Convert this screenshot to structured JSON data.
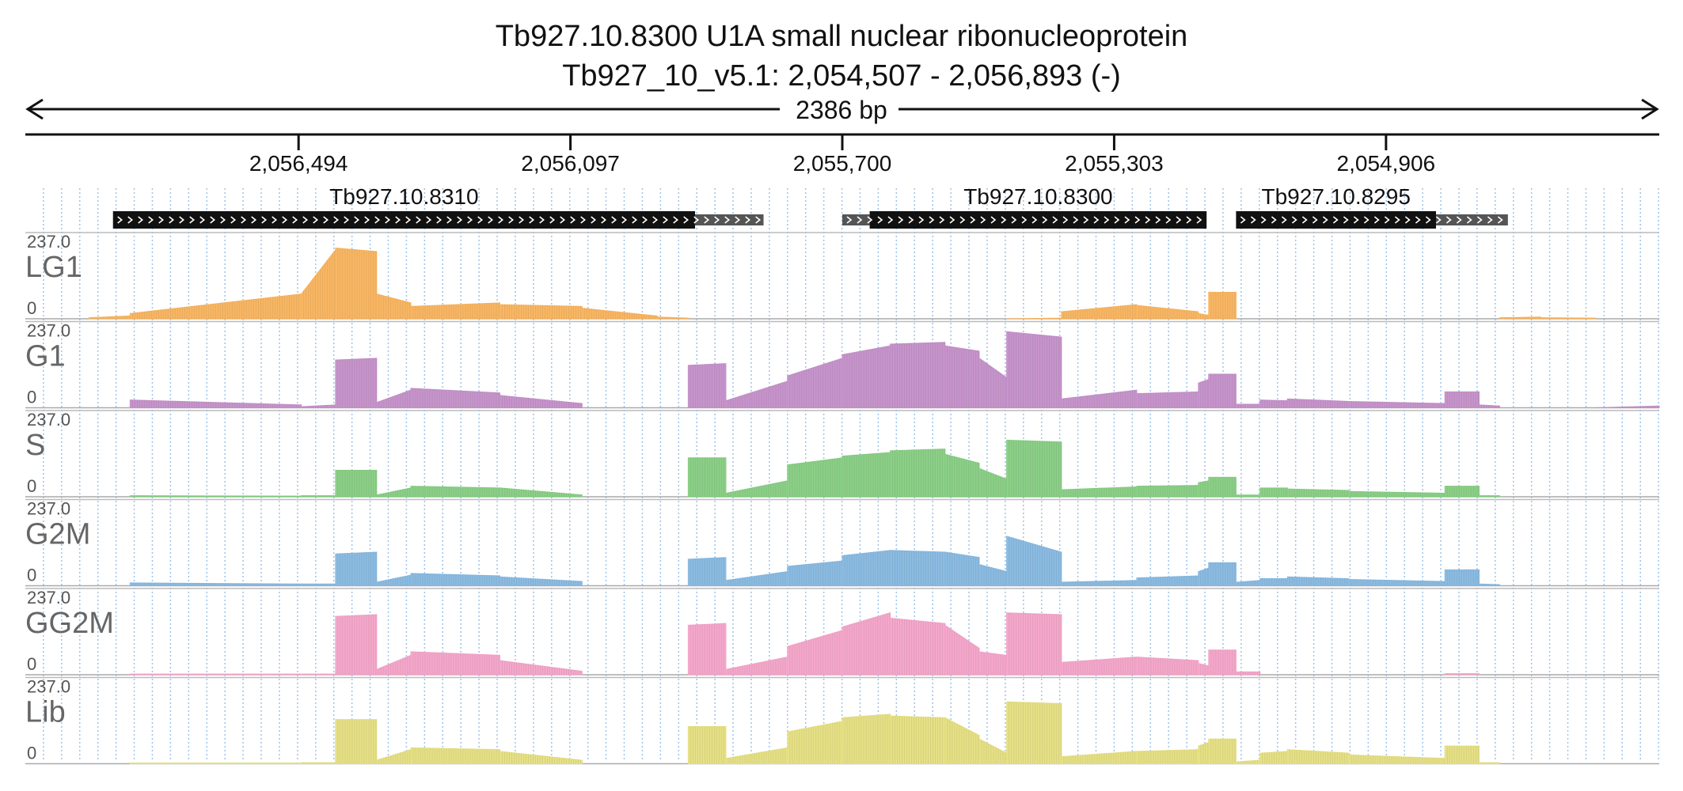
{
  "title": {
    "line1": "Tb927.10.8300  U1A small nuclear ribonucleoprotein",
    "line2": "Tb927_10_v5.1: 2,054,507 - 2,056,893 (-)"
  },
  "region": {
    "chrom": "Tb927_10_v5.1",
    "start": 2054507,
    "end": 2056893,
    "strand": "-",
    "span_label": "2386 bp"
  },
  "chart_data": {
    "type": "area",
    "x_axis": {
      "reversed": true,
      "ticks": [
        2056494,
        2056097,
        2055700,
        2055303,
        2054906
      ],
      "tick_labels": [
        "2,056,494",
        "2,056,097",
        "2,055,700",
        "2,055,303",
        "2,054,906"
      ],
      "grid": true
    },
    "genes": [
      {
        "name": "Tb927.10.8310",
        "cds": [
          2056765,
          2055915
        ],
        "utr": [
          2055915,
          2055815
        ]
      },
      {
        "name": "Tb927.10.8300",
        "cds": [
          2055660,
          2055168
        ],
        "utr": [
          2055700,
          2055660
        ]
      },
      {
        "name": "Tb927.10.8295",
        "cds": [
          2055125,
          2054833
        ],
        "utr": [
          2054833,
          2054728
        ]
      }
    ],
    "ylim": [
      0,
      237.0
    ],
    "y_max_label": "237.0",
    "y_min_label": "0",
    "segments": [
      [
        2056800,
        2056740
      ],
      [
        2056740,
        2056490
      ],
      [
        2056490,
        2056440
      ],
      [
        2056440,
        2056380
      ],
      [
        2056380,
        2056330
      ],
      [
        2056330,
        2056200
      ],
      [
        2056200,
        2056080
      ],
      [
        2056080,
        2055970
      ],
      [
        2055970,
        2055925
      ],
      [
        2055925,
        2055870
      ],
      [
        2055870,
        2055780
      ],
      [
        2055780,
        2055700
      ],
      [
        2055700,
        2055630
      ],
      [
        2055630,
        2055550
      ],
      [
        2055550,
        2055500
      ],
      [
        2055500,
        2055460
      ],
      [
        2055460,
        2055380
      ],
      [
        2055380,
        2055270
      ],
      [
        2055270,
        2055180
      ],
      [
        2055180,
        2055165
      ],
      [
        2055165,
        2055125
      ],
      [
        2055125,
        2055090
      ],
      [
        2055090,
        2055050
      ],
      [
        2055050,
        2054960
      ],
      [
        2054960,
        2054820
      ],
      [
        2054820,
        2054770
      ],
      [
        2054770,
        2054740
      ],
      [
        2054740,
        2054680
      ],
      [
        2054680,
        2054600
      ],
      [
        2054600,
        2054507
      ]
    ],
    "series": [
      {
        "name": "LG1",
        "color": "#f9b35c",
        "values": [
          [
            3,
            8
          ],
          [
            15,
            70
          ],
          [
            70,
            195
          ],
          [
            200,
            190
          ],
          [
            70,
            45
          ],
          [
            35,
            45
          ],
          [
            40,
            35
          ],
          [
            30,
            8
          ],
          [
            5,
            2
          ],
          [
            0,
            0
          ],
          [
            0,
            0
          ],
          [
            0,
            0
          ],
          [
            0,
            0
          ],
          [
            0,
            0
          ],
          [
            0,
            0
          ],
          [
            0,
            0
          ],
          [
            0,
            2
          ],
          [
            20,
            40
          ],
          [
            38,
            20
          ],
          [
            15,
            10
          ],
          [
            75,
            75
          ],
          [
            0,
            0
          ],
          [
            0,
            0
          ],
          [
            0,
            0
          ],
          [
            0,
            0
          ],
          [
            0,
            0
          ],
          [
            0,
            0
          ],
          [
            3,
            5
          ],
          [
            3,
            2
          ],
          [
            0,
            0
          ]
        ]
      },
      {
        "name": "G1",
        "color": "#c48fc9",
        "values": [
          [
            0,
            0
          ],
          [
            22,
            8
          ],
          [
            3,
            8
          ],
          [
            135,
            140
          ],
          [
            15,
            50
          ],
          [
            55,
            42
          ],
          [
            35,
            12
          ],
          [
            0,
            0
          ],
          [
            0,
            0
          ],
          [
            120,
            125
          ],
          [
            20,
            75
          ],
          [
            90,
            140
          ],
          [
            150,
            175
          ],
          [
            180,
            185
          ],
          [
            175,
            160
          ],
          [
            140,
            85
          ],
          [
            215,
            200
          ],
          [
            25,
            50
          ],
          [
            40,
            45
          ],
          [
            70,
            80
          ],
          [
            95,
            95
          ],
          [
            10,
            10
          ],
          [
            22,
            20
          ],
          [
            25,
            18
          ],
          [
            18,
            12
          ],
          [
            45,
            45
          ],
          [
            8,
            5
          ],
          [
            0,
            0
          ],
          [
            0,
            0
          ],
          [
            0,
            5
          ]
        ]
      },
      {
        "name": "S",
        "color": "#86cd82",
        "values": [
          [
            0,
            0
          ],
          [
            3,
            2
          ],
          [
            3,
            3
          ],
          [
            75,
            75
          ],
          [
            5,
            25
          ],
          [
            30,
            25
          ],
          [
            25,
            5
          ],
          [
            0,
            0
          ],
          [
            0,
            0
          ],
          [
            110,
            110
          ],
          [
            10,
            45
          ],
          [
            90,
            110
          ],
          [
            115,
            125
          ],
          [
            130,
            135
          ],
          [
            120,
            95
          ],
          [
            80,
            50
          ],
          [
            160,
            155
          ],
          [
            20,
            28
          ],
          [
            30,
            32
          ],
          [
            40,
            45
          ],
          [
            55,
            55
          ],
          [
            5,
            5
          ],
          [
            25,
            25
          ],
          [
            22,
            18
          ],
          [
            15,
            10
          ],
          [
            30,
            30
          ],
          [
            3,
            3
          ],
          [
            0,
            0
          ],
          [
            0,
            0
          ],
          [
            0,
            0
          ]
        ]
      },
      {
        "name": "G2M",
        "color": "#86b8e0",
        "values": [
          [
            0,
            0
          ],
          [
            8,
            5
          ],
          [
            5,
            5
          ],
          [
            90,
            95
          ],
          [
            10,
            30
          ],
          [
            35,
            28
          ],
          [
            25,
            12
          ],
          [
            0,
            0
          ],
          [
            0,
            0
          ],
          [
            75,
            80
          ],
          [
            15,
            40
          ],
          [
            55,
            70
          ],
          [
            85,
            100
          ],
          [
            100,
            95
          ],
          [
            95,
            80
          ],
          [
            60,
            40
          ],
          [
            140,
            95
          ],
          [
            10,
            15
          ],
          [
            22,
            28
          ],
          [
            40,
            50
          ],
          [
            65,
            65
          ],
          [
            10,
            15
          ],
          [
            20,
            20
          ],
          [
            25,
            20
          ],
          [
            18,
            12
          ],
          [
            45,
            45
          ],
          [
            5,
            3
          ],
          [
            0,
            0
          ],
          [
            0,
            0
          ],
          [
            0,
            0
          ]
        ]
      },
      {
        "name": "GG2M",
        "color": "#f4a3c8",
        "values": [
          [
            0,
            0
          ],
          [
            2,
            2
          ],
          [
            2,
            2
          ],
          [
            165,
            170
          ],
          [
            15,
            55
          ],
          [
            65,
            55
          ],
          [
            40,
            10
          ],
          [
            0,
            0
          ],
          [
            0,
            0
          ],
          [
            140,
            145
          ],
          [
            15,
            50
          ],
          [
            80,
            125
          ],
          [
            135,
            175
          ],
          [
            160,
            145
          ],
          [
            140,
            75
          ],
          [
            65,
            55
          ],
          [
            175,
            170
          ],
          [
            35,
            50
          ],
          [
            50,
            40
          ],
          [
            32,
            25
          ],
          [
            70,
            70
          ],
          [
            8,
            8
          ],
          [
            0,
            0
          ],
          [
            0,
            0
          ],
          [
            0,
            0
          ],
          [
            3,
            3
          ],
          [
            0,
            0
          ],
          [
            0,
            0
          ],
          [
            0,
            0
          ],
          [
            0,
            0
          ]
        ]
      },
      {
        "name": "Lib",
        "color": "#e5df7f",
        "values": [
          [
            0,
            0
          ],
          [
            2,
            2
          ],
          [
            3,
            3
          ],
          [
            125,
            125
          ],
          [
            10,
            40
          ],
          [
            45,
            40
          ],
          [
            35,
            10
          ],
          [
            0,
            0
          ],
          [
            0,
            0
          ],
          [
            105,
            105
          ],
          [
            15,
            45
          ],
          [
            90,
            120
          ],
          [
            130,
            140
          ],
          [
            135,
            130
          ],
          [
            130,
            80
          ],
          [
            70,
            30
          ],
          [
            175,
            170
          ],
          [
            20,
            35
          ],
          [
            35,
            40
          ],
          [
            50,
            60
          ],
          [
            70,
            70
          ],
          [
            5,
            10
          ],
          [
            30,
            35
          ],
          [
            40,
            30
          ],
          [
            25,
            15
          ],
          [
            50,
            50
          ],
          [
            3,
            3
          ],
          [
            0,
            0
          ],
          [
            0,
            0
          ],
          [
            0,
            0
          ]
        ]
      }
    ]
  }
}
